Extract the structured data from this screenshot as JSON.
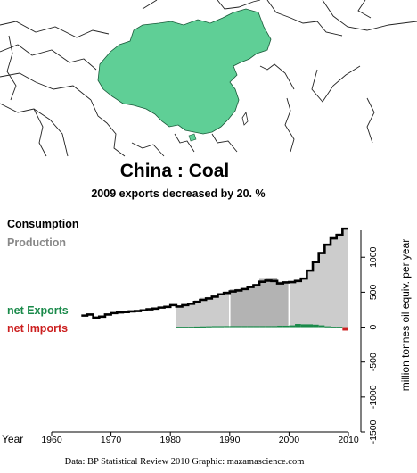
{
  "title": "China :  Coal",
  "subtitle": "2009 exports decreased by 20. %",
  "legend": {
    "consumption": "Consumption",
    "production": "Production",
    "net_exports": "net Exports",
    "net_imports": "net Imports"
  },
  "colors": {
    "consumption": "#000000",
    "production_fill": "#cccccc",
    "production_shade": "#b3b3b3",
    "net_exports": "#1a8a4a",
    "net_imports": "#cc2020",
    "china_fill": "#5fcf96",
    "legend_production": "#888888"
  },
  "credit": "Data: BP Statistical Review 2010    Graphic: mazamascience.com",
  "map": {
    "highlighted_country": "China"
  },
  "chart_data": {
    "type": "line",
    "title": "China :  Coal",
    "subtitle": "2009 exports decreased by 20. %",
    "xlabel": "Year",
    "ylabel": "million tonnes oil equiv. per year",
    "xlim": [
      1960,
      2010
    ],
    "ylim": [
      -1500,
      1500
    ],
    "xticks": [
      "1960",
      "1970",
      "1980",
      "1990",
      "2000",
      "2010"
    ],
    "yticks": [
      "-1500",
      "-1000",
      "-500",
      "0",
      "500",
      "1000"
    ],
    "shaded_decade": [
      1990,
      2000
    ],
    "series": [
      {
        "name": "Consumption",
        "x": [
          1965,
          1966,
          1967,
          1968,
          1969,
          1970,
          1971,
          1972,
          1973,
          1974,
          1975,
          1976,
          1977,
          1978,
          1979,
          1980,
          1981,
          1982,
          1983,
          1984,
          1985,
          1986,
          1987,
          1988,
          1989,
          1990,
          1991,
          1992,
          1993,
          1994,
          1995,
          1996,
          1997,
          1998,
          1999,
          2000,
          2001,
          2002,
          2003,
          2004,
          2005,
          2006,
          2007,
          2008,
          2009
        ],
        "values": [
          165,
          180,
          135,
          150,
          180,
          200,
          210,
          215,
          225,
          230,
          240,
          255,
          265,
          280,
          290,
          315,
          295,
          315,
          335,
          360,
          390,
          410,
          435,
          470,
          490,
          510,
          525,
          545,
          575,
          600,
          650,
          665,
          660,
          625,
          640,
          645,
          660,
          695,
          810,
          930,
          1060,
          1180,
          1270,
          1320,
          1410
        ]
      },
      {
        "name": "Production",
        "x": [
          1981,
          1982,
          1983,
          1984,
          1985,
          1986,
          1987,
          1988,
          1989,
          1990,
          1991,
          1992,
          1993,
          1994,
          1995,
          1996,
          1997,
          1998,
          1999,
          2000,
          2001,
          2002,
          2003,
          2004,
          2005,
          2006,
          2007,
          2008,
          2009
        ],
        "values": [
          305,
          330,
          350,
          385,
          420,
          430,
          455,
          480,
          510,
          540,
          545,
          560,
          580,
          620,
          690,
          710,
          700,
          650,
          640,
          660,
          680,
          710,
          820,
          940,
          1080,
          1190,
          1280,
          1340,
          1400
        ]
      },
      {
        "name": "net Exports",
        "x": [
          1981,
          1982,
          1983,
          1984,
          1985,
          1986,
          1987,
          1988,
          1989,
          1990,
          1991,
          1992,
          1993,
          1994,
          1995,
          1996,
          1997,
          1998,
          1999,
          2000,
          2001,
          2002,
          2003,
          2004,
          2005,
          2006,
          2007,
          2008,
          2009
        ],
        "values": [
          5,
          5,
          5,
          8,
          10,
          12,
          14,
          14,
          15,
          15,
          15,
          15,
          15,
          15,
          15,
          15,
          15,
          20,
          20,
          25,
          45,
          40,
          40,
          35,
          25,
          12,
          5,
          5,
          -50
        ]
      }
    ]
  }
}
